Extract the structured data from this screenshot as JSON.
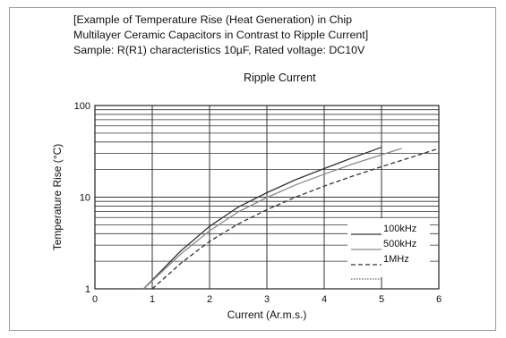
{
  "chart_data": {
    "type": "line",
    "title_lines": [
      "[Example of Temperature Rise (Heat Generation) in Chip",
      "Multilayer Ceramic Capacitors in Contrast to Ripple Current]",
      "Sample: R(R1) characteristics 10µF, Rated voltage: DC10V"
    ],
    "subtitle": "Ripple Current",
    "xlabel": "Current (Ar.m.s.)",
    "ylabel": "Temperature Rise (°C)",
    "xlim": [
      0,
      6
    ],
    "ylim": [
      1,
      100
    ],
    "yscale": "log",
    "x_ticks": [
      "0",
      "1",
      "2",
      "3",
      "4",
      "5",
      "6"
    ],
    "y_ticks": [
      {
        "value": 1,
        "label": "1"
      },
      {
        "value": 10,
        "label": "10"
      },
      {
        "value": 100,
        "label": "100"
      }
    ],
    "grid": true,
    "legend_position": "lower-right",
    "series": [
      {
        "name": "100kHz",
        "style": "solid",
        "color": "#333333",
        "x": [
          0.85,
          1.5,
          2,
          2.5,
          3,
          3.5,
          4,
          4.5,
          5
        ],
        "y": [
          1.0,
          2.6,
          4.8,
          7.8,
          11.2,
          15.5,
          20.5,
          27,
          35
        ]
      },
      {
        "name": "500kHz",
        "style": "solid-gray",
        "color": "#8a8a8a",
        "x": [
          0.85,
          1.5,
          2,
          2.5,
          3,
          3.5,
          4,
          4.5,
          5,
          5.35
        ],
        "y": [
          1.0,
          2.4,
          4.3,
          6.9,
          9.9,
          13.6,
          17.8,
          23,
          29,
          34
        ]
      },
      {
        "name": "1MHz",
        "style": "dashed",
        "color": "#333333",
        "x": [
          1.0,
          1.5,
          2,
          2.5,
          3,
          3.5,
          4,
          4.5,
          5,
          5.5,
          6
        ],
        "y": [
          1.0,
          1.9,
          3.3,
          5.1,
          7.3,
          10,
          13.2,
          17,
          21.5,
          27,
          34
        ]
      },
      {
        "name": "",
        "style": "dotted",
        "color": "#666666",
        "x": [],
        "y": []
      }
    ]
  }
}
